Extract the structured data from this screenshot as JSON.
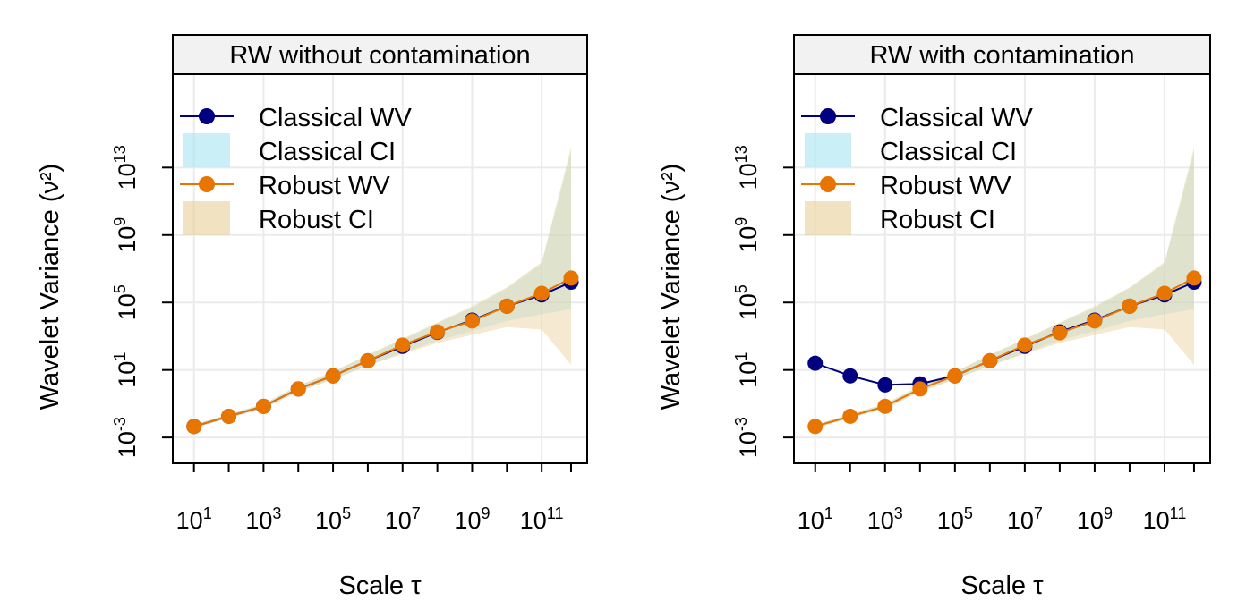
{
  "chart_data": [
    {
      "type": "line",
      "title": "RW without contamination",
      "xlabel": "Scale τ",
      "ylabel": "Wavelet Variance (ν²)",
      "x_scale": "log10",
      "y_scale": "log10",
      "xlim": [
        5,
        1000000000000.0
      ],
      "ylim": [
        0.0001,
        1e+18
      ],
      "x_ticks": [
        10,
        1000,
        100000,
        10000000,
        1000000000,
        100000000000
      ],
      "x_tick_labels": [
        {
          "base": "10",
          "exp": "1"
        },
        {
          "base": "10",
          "exp": "3"
        },
        {
          "base": "10",
          "exp": "5"
        },
        {
          "base": "10",
          "exp": "7"
        },
        {
          "base": "10",
          "exp": "9"
        },
        {
          "base": "10",
          "exp": "11"
        }
      ],
      "y_ticks": [
        0.001,
        10,
        100000,
        1000000000,
        10000000000000
      ],
      "y_tick_labels": [
        {
          "base": "10",
          "exp": "-3"
        },
        {
          "base": "10",
          "exp": "1"
        },
        {
          "base": "10",
          "exp": "5"
        },
        {
          "base": "10",
          "exp": "9"
        },
        {
          "base": "10",
          "exp": "13"
        }
      ],
      "grid": true,
      "legend_position": "top-left",
      "legend": [
        {
          "label": "Classical WV",
          "kind": "line-point",
          "color": "#000080"
        },
        {
          "label": "Classical CI",
          "kind": "band",
          "color": "#a8e4f0"
        },
        {
          "label": "Robust WV",
          "kind": "line-point",
          "color": "#e87500"
        },
        {
          "label": "Robust CI",
          "kind": "band",
          "color": "#e8d098"
        }
      ],
      "x": [
        10,
        100,
        1000,
        10000,
        100000,
        1000000,
        10000000,
        100000000,
        1000000000,
        10000000000,
        100000000000,
        700000000000
      ],
      "series": [
        {
          "name": "Classical WV",
          "color": "#000080",
          "values": [
            0.0045,
            0.018,
            0.07,
            0.75,
            4.5,
            35,
            250,
            1700,
            9000,
            60000,
            280000,
            1600000
          ]
        },
        {
          "name": "Robust WV",
          "color": "#e87500",
          "values": [
            0.0045,
            0.018,
            0.07,
            0.75,
            4.5,
            35,
            300,
            1800,
            8000,
            60000,
            350000,
            2800000
          ]
        }
      ],
      "bands": [
        {
          "name": "Classical CI",
          "color": "#a8e4f0",
          "lower": [
            0.0036,
            0.014,
            0.052,
            0.5,
            2.8,
            18,
            100,
            550,
            2000,
            8000,
            20000,
            40000
          ],
          "upper": [
            0.0057,
            0.024,
            0.095,
            1.1,
            7.5,
            75,
            650,
            6000,
            50000,
            700000,
            20000000,
            100000000000000
          ]
        },
        {
          "name": "Robust CI",
          "color": "#e8d098",
          "lower": [
            0.0036,
            0.014,
            0.052,
            0.5,
            2.8,
            18,
            90,
            400,
            1200,
            3500,
            2500,
            20
          ],
          "upper": [
            0.0058,
            0.024,
            0.1,
            1.2,
            8,
            80,
            700,
            6500,
            60000,
            800000,
            25000000,
            160000000000000
          ]
        }
      ]
    },
    {
      "type": "line",
      "title": "RW with contamination",
      "xlabel": "Scale τ",
      "ylabel": "Wavelet Variance (ν²)",
      "x_scale": "log10",
      "y_scale": "log10",
      "xlim": [
        5,
        1000000000000.0
      ],
      "ylim": [
        0.0001,
        1e+18
      ],
      "x_ticks": [
        10,
        1000,
        100000,
        10000000,
        1000000000,
        100000000000
      ],
      "x_tick_labels": [
        {
          "base": "10",
          "exp": "1"
        },
        {
          "base": "10",
          "exp": "3"
        },
        {
          "base": "10",
          "exp": "5"
        },
        {
          "base": "10",
          "exp": "7"
        },
        {
          "base": "10",
          "exp": "9"
        },
        {
          "base": "10",
          "exp": "11"
        }
      ],
      "y_ticks": [
        0.001,
        10,
        100000,
        1000000000,
        10000000000000
      ],
      "y_tick_labels": [
        {
          "base": "10",
          "exp": "-3"
        },
        {
          "base": "10",
          "exp": "1"
        },
        {
          "base": "10",
          "exp": "5"
        },
        {
          "base": "10",
          "exp": "9"
        },
        {
          "base": "10",
          "exp": "13"
        }
      ],
      "grid": true,
      "legend_position": "top-left",
      "legend": [
        {
          "label": "Classical WV",
          "kind": "line-point",
          "color": "#000080"
        },
        {
          "label": "Classical CI",
          "kind": "band",
          "color": "#a8e4f0"
        },
        {
          "label": "Robust WV",
          "kind": "line-point",
          "color": "#e87500"
        },
        {
          "label": "Robust CI",
          "kind": "band",
          "color": "#e8d098"
        }
      ],
      "x": [
        10,
        100,
        1000,
        10000,
        100000,
        1000000,
        10000000,
        100000000,
        1000000000,
        10000000000,
        100000000000,
        700000000000
      ],
      "series": [
        {
          "name": "Classical WV",
          "color": "#000080",
          "values": [
            25,
            4.5,
            1.3,
            1.5,
            4.5,
            35,
            250,
            1800,
            9000,
            60000,
            280000,
            1600000
          ]
        },
        {
          "name": "Robust WV",
          "color": "#e87500",
          "values": [
            0.0045,
            0.018,
            0.07,
            0.75,
            4.5,
            35,
            300,
            1600,
            8000,
            60000,
            350000,
            2800000
          ]
        }
      ],
      "bands": [
        {
          "name": "Classical CI",
          "color": "#a8e4f0",
          "lower": [
            0.0036,
            0.014,
            0.052,
            0.5,
            2.8,
            18,
            100,
            550,
            2000,
            8000,
            20000,
            40000
          ],
          "upper": [
            0.0057,
            0.024,
            0.095,
            1.1,
            7.5,
            75,
            650,
            6000,
            50000,
            700000,
            20000000,
            100000000000000
          ]
        },
        {
          "name": "Robust CI",
          "color": "#e8d098",
          "lower": [
            0.0036,
            0.014,
            0.052,
            0.5,
            2.8,
            18,
            90,
            400,
            1200,
            3500,
            2500,
            20
          ],
          "upper": [
            0.0058,
            0.024,
            0.1,
            1.2,
            8,
            80,
            700,
            6500,
            60000,
            800000,
            25000000,
            160000000000000
          ]
        }
      ]
    }
  ]
}
